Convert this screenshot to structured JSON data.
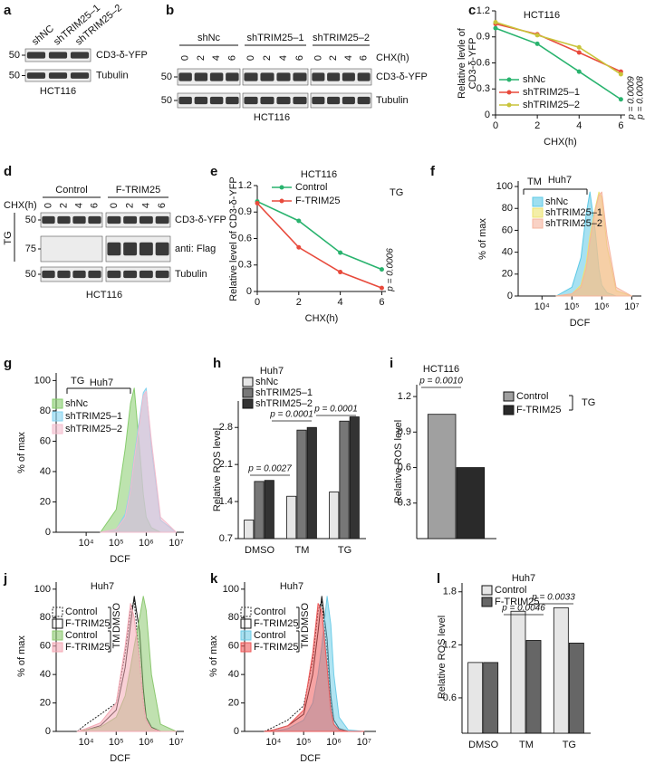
{
  "blots": [
    {
      "panel": "a",
      "lanes": [
        "shNC",
        "shTRIM25–1",
        "shTRIM25–2"
      ],
      "markers": [
        50,
        50
      ],
      "rows": [
        "CD3-δ-YFP",
        "Tubulin"
      ],
      "cell_line": "HCT116"
    },
    {
      "panel": "b",
      "groups": [
        "shNc",
        "shTRIM25–1",
        "shTRIM25–2"
      ],
      "lanes": [
        0,
        2,
        4,
        6
      ],
      "lane_axis": "CHX(h)",
      "markers": [
        50,
        50
      ],
      "rows": [
        "CD3-δ-YFP",
        "Tubulin"
      ],
      "cell_line": "HCT116"
    },
    {
      "panel": "d",
      "groups": [
        "Control",
        "F-TRIM25"
      ],
      "lanes": [
        0,
        2,
        4,
        6
      ],
      "lane_axis": "CHX(h)",
      "treatment": "TG",
      "markers": [
        50,
        75,
        50
      ],
      "rows": [
        "CD3-δ-YFP",
        "anti: Flag",
        "Tubulin"
      ],
      "cell_line": "HCT116"
    }
  ],
  "chart_data": [
    {
      "panel": "c",
      "type": "line",
      "title": "HCT116",
      "x": [
        0,
        2,
        4,
        6
      ],
      "xlim": [
        0,
        6.2
      ],
      "ylim": [
        0,
        1.2
      ],
      "xticks": [
        0,
        2,
        4,
        6
      ],
      "yticks": [
        0,
        0.3,
        0.6,
        0.9,
        1.2
      ],
      "xlabel": "CHX(h)",
      "ylabel": [
        "Relative levle of",
        "CD3-δ-YFP"
      ],
      "series": [
        {
          "name": "shNc",
          "color": "#29b36e",
          "values": [
            1.0,
            0.82,
            0.5,
            0.18
          ]
        },
        {
          "name": "shTRIM25–1",
          "color": "#e84a3c",
          "values": [
            1.05,
            0.93,
            0.72,
            0.5
          ]
        },
        {
          "name": "shTRIM25–2",
          "color": "#c9c43a",
          "values": [
            1.07,
            0.92,
            0.78,
            0.47
          ]
        }
      ],
      "annotations": [
        "p = 0.0009",
        "p = 0.0008"
      ]
    },
    {
      "panel": "e",
      "type": "line",
      "title": "HCT116",
      "treatment": "TG",
      "x": [
        0,
        2,
        4,
        6
      ],
      "xlim": [
        0,
        6.2
      ],
      "ylim": [
        0,
        1.2
      ],
      "xticks": [
        0,
        2,
        4,
        6
      ],
      "yticks": [
        0,
        0.3,
        0.6,
        0.9,
        1.2
      ],
      "xlabel": "CHX(h)",
      "ylabel": "Relative level of CD3-δ-YFP",
      "series": [
        {
          "name": "Control",
          "color": "#29b36e",
          "values": [
            1.02,
            0.8,
            0.44,
            0.25
          ]
        },
        {
          "name": "F-TRIM25",
          "color": "#e84a3c",
          "values": [
            1.0,
            0.5,
            0.22,
            0.04
          ]
        }
      ],
      "annotations": [
        "p = 0.0006"
      ]
    },
    {
      "panel": "f",
      "type": "density",
      "title": "Huh7",
      "treatment": "TM",
      "xlog": true,
      "x": [
        30000,
        100000,
        200000,
        300000,
        400000,
        600000,
        800000,
        1000000,
        1500000,
        3000000,
        10000000
      ],
      "xlim": [
        1600,
        21000000
      ],
      "ylim": [
        0,
        105
      ],
      "xticks": [
        {
          "value": 10000,
          "label": "10⁴"
        },
        {
          "value": 100000,
          "label": "10⁵"
        },
        {
          "value": 1000000,
          "label": "10⁶"
        },
        {
          "value": 10000000,
          "label": "10⁷"
        }
      ],
      "yticks": [
        0,
        20,
        40,
        60,
        80,
        100
      ],
      "xlabel": "DCF",
      "ylabel": "% of max",
      "series": [
        {
          "name": "shNc",
          "color": "#5ec9e6",
          "values": [
            0,
            8,
            35,
            75,
            95,
            60,
            25,
            10,
            3,
            0,
            0
          ]
        },
        {
          "name": "shTRIM25–1",
          "color": "#ece36e",
          "values": [
            0,
            2,
            10,
            30,
            55,
            80,
            95,
            90,
            45,
            5,
            0
          ]
        },
        {
          "name": "shTRIM25–2",
          "color": "#f5b49e",
          "values": [
            0,
            2,
            8,
            25,
            50,
            78,
            92,
            95,
            55,
            8,
            0
          ]
        }
      ]
    },
    {
      "panel": "g",
      "type": "density",
      "title": "Huh7",
      "treatment": "TG",
      "xlog": true,
      "x": [
        30000,
        100000,
        200000,
        300000,
        400000,
        600000,
        800000,
        1000000,
        1500000,
        3000000,
        10000000
      ],
      "xlim": [
        1000,
        18000000
      ],
      "ylim": [
        0,
        105
      ],
      "xticks": [
        {
          "value": 10000,
          "label": "10⁴"
        },
        {
          "value": 100000,
          "label": "10⁵"
        },
        {
          "value": 1000000,
          "label": "10⁶"
        },
        {
          "value": 10000000,
          "label": "10⁷"
        }
      ],
      "yticks": [
        0,
        20,
        40,
        60,
        80,
        100
      ],
      "xlabel": "DCF",
      "ylabel": "% of max",
      "series": [
        {
          "name": "shNc",
          "color": "#86cc6c",
          "values": [
            0,
            15,
            55,
            85,
            95,
            55,
            25,
            10,
            3,
            0,
            0
          ]
        },
        {
          "name": "shTRIM25–1",
          "color": "#86d3f0",
          "values": [
            0,
            2,
            12,
            30,
            50,
            75,
            92,
            95,
            55,
            8,
            0
          ]
        },
        {
          "name": "shTRIM25–2",
          "color": "#f3bccd",
          "values": [
            0,
            2,
            10,
            28,
            48,
            72,
            90,
            93,
            60,
            10,
            0
          ]
        }
      ]
    },
    {
      "panel": "h",
      "type": "bar",
      "title": "Huh7",
      "categories": [
        "DMSO",
        "TM",
        "TG"
      ],
      "ylim": [
        0.7,
        3.3
      ],
      "yticks": [
        0.7,
        1.4,
        2.1,
        2.8
      ],
      "ylabel": "Relative ROS level",
      "series": [
        {
          "name": "shNc",
          "color": "#e6e6e6",
          "values": [
            1.05,
            1.5,
            1.58
          ]
        },
        {
          "name": "shTRIM25–1",
          "color": "#777777",
          "values": [
            1.78,
            2.75,
            2.92
          ]
        },
        {
          "name": "shTRIM25–2",
          "color": "#333333",
          "values": [
            1.8,
            2.8,
            3.0
          ]
        }
      ],
      "annotations": [
        "p = 0.0027",
        "p = 0.0001",
        "p = 0.0001"
      ]
    },
    {
      "panel": "i",
      "type": "bar",
      "title": "HCT116",
      "treatment": "TG",
      "categories": [
        null
      ],
      "ylim": [
        0,
        1.3
      ],
      "yticks": [
        0.3,
        0.6,
        0.9,
        1.2
      ],
      "ylabel": "Relative ROS level",
      "series": [
        {
          "name": "Control",
          "color": "#a0a0a0",
          "values": [
            1.05
          ]
        },
        {
          "name": "F-TRIM25",
          "color": "#2a2a2a",
          "values": [
            0.6
          ]
        }
      ],
      "annotations": [
        "p = 0.0010"
      ]
    },
    {
      "panel": "j",
      "type": "density",
      "title": "Huh7",
      "legend_groups": [
        "DMSO",
        "TM"
      ],
      "xlog": true,
      "x": [
        5000,
        10000,
        30000,
        100000,
        200000,
        300000,
        400000,
        600000,
        800000,
        1000000,
        1500000,
        3000000,
        10000000
      ],
      "xlim": [
        1000,
        18000000
      ],
      "ylim": [
        0,
        105
      ],
      "xticks": [
        {
          "value": 10000,
          "label": "10⁴"
        },
        {
          "value": 100000,
          "label": "10⁵"
        },
        {
          "value": 1000000,
          "label": "10⁶"
        },
        {
          "value": 10000000,
          "label": "10⁷"
        }
      ],
      "yticks": [
        0,
        20,
        40,
        60,
        80,
        100
      ],
      "xlabel": "DCF",
      "ylabel": "% of max",
      "series": [
        {
          "name": "Control",
          "color": "#222222",
          "filled": false,
          "dash": true,
          "values": [
            0,
            5,
            12,
            20,
            55,
            85,
            92,
            50,
            20,
            8,
            2,
            0,
            0
          ]
        },
        {
          "name": "F-TRIM25",
          "color": "#111111",
          "filled": false,
          "values": [
            0,
            1,
            4,
            15,
            45,
            75,
            95,
            70,
            30,
            10,
            3,
            0,
            0
          ]
        },
        {
          "name": "Control",
          "color": "#8cc870",
          "values": [
            0,
            1,
            3,
            10,
            25,
            45,
            60,
            80,
            95,
            85,
            40,
            5,
            0
          ]
        },
        {
          "name": "F-TRIM25",
          "color": "#f4a9b5",
          "values": [
            0,
            2,
            6,
            20,
            60,
            90,
            80,
            50,
            20,
            8,
            2,
            0,
            0
          ]
        }
      ]
    },
    {
      "panel": "k",
      "type": "density",
      "title": "Huh7",
      "legend_groups": [
        "DMSO",
        "TM"
      ],
      "xlog": true,
      "x": [
        5000,
        10000,
        30000,
        100000,
        200000,
        300000,
        400000,
        600000,
        800000,
        1000000,
        1500000,
        3000000,
        10000000
      ],
      "xlim": [
        1100,
        25000000
      ],
      "ylim": [
        0,
        105
      ],
      "xticks": [
        {
          "value": 10000,
          "label": "10⁴"
        },
        {
          "value": 100000,
          "label": "10⁵"
        },
        {
          "value": 1000000,
          "label": "10⁶"
        },
        {
          "value": 10000000,
          "label": "10⁷"
        }
      ],
      "yticks": [
        0,
        20,
        40,
        60,
        80,
        100
      ],
      "xlabel": "DCF",
      "ylabel": "% of max",
      "series": [
        {
          "name": "Control",
          "color": "#222222",
          "filled": false,
          "dash": true,
          "values": [
            0,
            3,
            8,
            18,
            50,
            85,
            92,
            55,
            20,
            8,
            2,
            0,
            0
          ]
        },
        {
          "name": "F-TRIM25",
          "color": "#111111",
          "filled": false,
          "values": [
            0,
            1,
            4,
            12,
            40,
            70,
            95,
            65,
            25,
            8,
            2,
            0,
            0
          ]
        },
        {
          "name": "Control",
          "color": "#6fcde8",
          "values": [
            0,
            0,
            2,
            8,
            20,
            40,
            60,
            95,
            75,
            40,
            10,
            1,
            0
          ]
        },
        {
          "name": "F-TRIM25",
          "color": "#ee5a5a",
          "values": [
            0,
            1,
            4,
            15,
            55,
            90,
            85,
            45,
            15,
            5,
            1,
            0,
            0
          ]
        }
      ]
    },
    {
      "panel": "l",
      "type": "bar",
      "title": "Huh7",
      "categories": [
        "DMSO",
        "TM",
        "TG"
      ],
      "ylim": [
        0.2,
        1.9
      ],
      "yticks": [
        0.6,
        1.2,
        1.8
      ],
      "ylabel": "Relative ROS level",
      "series": [
        {
          "name": "Control",
          "color": "#e6e6e6",
          "values": [
            1.0,
            1.58,
            1.62
          ]
        },
        {
          "name": "F-TRIM25",
          "color": "#666666",
          "values": [
            1.0,
            1.25,
            1.22
          ]
        }
      ],
      "annotations": [
        "p = 0.0046",
        "p = 0.0033"
      ]
    }
  ]
}
